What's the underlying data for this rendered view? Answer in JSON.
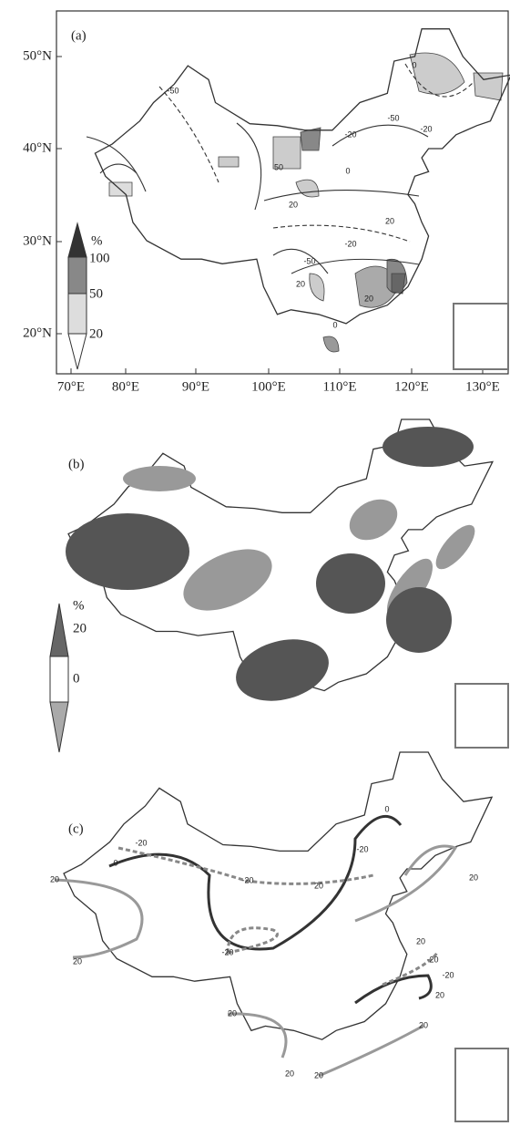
{
  "panels": [
    {
      "label": "(a)",
      "lat_ticks": [
        "50°N",
        "40°N",
        "30°N",
        "20°N"
      ],
      "lon_ticks": [
        "70°E",
        "80°E",
        "90°E",
        "100°E",
        "110°E",
        "120°E",
        "130°E"
      ],
      "legend": {
        "unit": "%",
        "levels": [
          "100",
          "50",
          "20"
        ]
      },
      "contour_labels": [
        "-50",
        "-20",
        "-50",
        "0",
        "-20",
        "50",
        "20",
        "0",
        "20",
        "-20",
        "-50",
        "20",
        "20",
        "0"
      ]
    },
    {
      "label": "(b)",
      "legend": {
        "unit": "%",
        "levels": [
          "20",
          "0"
        ]
      }
    },
    {
      "label": "(c)",
      "contour_labels": [
        "-20",
        "0",
        "20",
        "-20",
        "20",
        "-20",
        "0",
        "20",
        "20",
        "-20",
        "20",
        "-20",
        "-20",
        "20",
        "20",
        "20",
        "20",
        "20"
      ]
    }
  ]
}
